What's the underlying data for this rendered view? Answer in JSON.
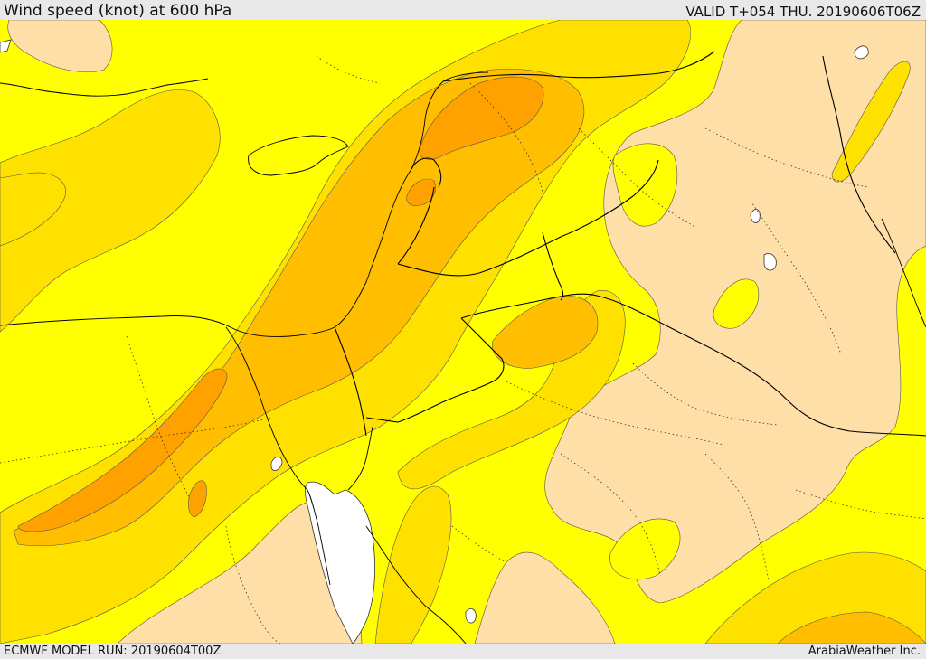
{
  "header": {
    "title": "Wind speed (knot) at 600 hPa",
    "valid": "VALID T+054 THU. 20190606T06Z"
  },
  "footer": {
    "model_run": "ECMWF MODEL RUN: 20190604T00Z",
    "brand": "ArabiaWeather Inc."
  },
  "colors": {
    "tan": "#fddfa7",
    "yellow": "#ffff00",
    "gold": "#ffe100",
    "amber": "#ffbf00",
    "orange": "#ffa200",
    "water": "#ffffff",
    "border": "#000000"
  }
}
